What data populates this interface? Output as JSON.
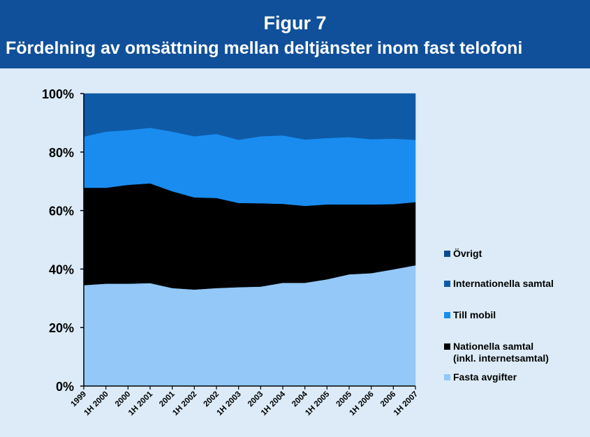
{
  "header": {
    "figure_label": "Figur 7",
    "title": "Fördelning av omsättning mellan deltjänster inom fast telofoni"
  },
  "chart_data": {
    "type": "area",
    "stacked": true,
    "categories": [
      "1999",
      "1H 2000",
      "2000",
      "1H 2001",
      "2001",
      "1H 2002",
      "2002",
      "1H 2003",
      "2003",
      "1H 2004",
      "2004",
      "1H 2005",
      "2005",
      "1H 2006",
      "2006",
      "1H 2007"
    ],
    "ylim": [
      0,
      100
    ],
    "yticks": [
      "0%",
      "20%",
      "40%",
      "60%",
      "80%",
      "100%"
    ],
    "grid": false,
    "legend_position": "right",
    "series": [
      {
        "name": "Fasta avgifter",
        "color": "#93c8f8",
        "values": [
          34.5,
          35,
          35,
          35.2,
          33.5,
          33,
          33.5,
          33.8,
          34,
          35.3,
          35.3,
          36.5,
          38.2,
          38.6,
          39.9,
          41.3
        ]
      },
      {
        "name": "Nationella samtal\n(inkl. internetsamtal)",
        "color": "#000000",
        "values": [
          33.3,
          32.8,
          33.8,
          34.1,
          33.1,
          31.5,
          30.8,
          28.8,
          28.5,
          27.0,
          26.3,
          25.6,
          23.9,
          23.5,
          22.3,
          21.6
        ]
      },
      {
        "name": "Till mobil",
        "color": "#1a8cf0",
        "values": [
          17.5,
          19.2,
          18.7,
          19.0,
          20.4,
          20.9,
          21.9,
          21.6,
          22.9,
          23.4,
          22.7,
          22.7,
          23.0,
          22.3,
          22.4,
          21.3
        ]
      },
      {
        "name": "Internationella samtal",
        "color": "#0f5aa6",
        "values": [
          14.7,
          13.0,
          12.5,
          11.7,
          13.0,
          14.6,
          13.8,
          15.8,
          14.6,
          14.3,
          15.7,
          15.2,
          14.9,
          15.6,
          15.4,
          15.8
        ]
      },
      {
        "name": "Övrigt",
        "color": "#0a4a92",
        "values": [
          0,
          0,
          0,
          0,
          0,
          0,
          0,
          0,
          0,
          0,
          0,
          0,
          0,
          0,
          0,
          0
        ]
      }
    ]
  }
}
